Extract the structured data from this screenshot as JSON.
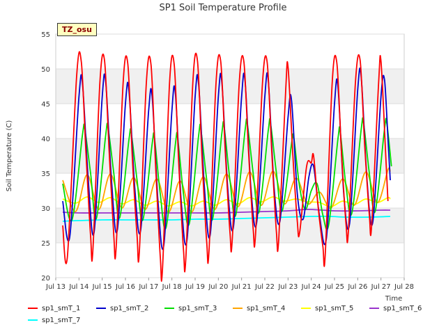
{
  "chart_data": {
    "type": "line",
    "title": "SP1 Soil Temperature Profile",
    "xlabel": "Time",
    "ylabel": "Soil Temperature (C)",
    "ylim": [
      20,
      55
    ],
    "xlim": [
      13,
      28
    ],
    "yticks": [
      20,
      25,
      30,
      35,
      40,
      45,
      50,
      55
    ],
    "xticks": [
      "Jul 13",
      "Jul 14",
      "Jul 15",
      "Jul 16",
      "Jul 17",
      "Jul 18",
      "Jul 19",
      "Jul 20",
      "Jul 21",
      "Jul 22",
      "Jul 23",
      "Jul 24",
      "Jul 25",
      "Jul 26",
      "Jul 27",
      "Jul 28"
    ],
    "grid": "horizontal bands",
    "legend_position": "bottom",
    "annotation": "TZ_osu",
    "series": [
      {
        "name": "sp1_smT_1",
        "color": "#ff0000",
        "values": [
          [
            13.3,
            27.5
          ],
          [
            13.5,
            23.0
          ],
          [
            13.9,
            49.0
          ],
          [
            14.1,
            51.0
          ],
          [
            14.3,
            38.0
          ],
          [
            14.5,
            26.0
          ],
          [
            14.6,
            24.0
          ],
          [
            14.9,
            48.0
          ],
          [
            15.1,
            51.2
          ],
          [
            15.3,
            38.0
          ],
          [
            15.5,
            26.0
          ],
          [
            15.6,
            24.4
          ],
          [
            15.9,
            48.0
          ],
          [
            16.1,
            50.8
          ],
          [
            16.3,
            37.0
          ],
          [
            16.5,
            26.0
          ],
          [
            16.6,
            23.8
          ],
          [
            16.9,
            48.0
          ],
          [
            17.1,
            50.6
          ],
          [
            17.3,
            36.0
          ],
          [
            17.5,
            23.0
          ],
          [
            17.6,
            21.5
          ],
          [
            17.9,
            48.0
          ],
          [
            18.1,
            50.6
          ],
          [
            18.3,
            36.0
          ],
          [
            18.5,
            24.0
          ],
          [
            18.6,
            22.8
          ],
          [
            18.9,
            48.0
          ],
          [
            19.1,
            51.2
          ],
          [
            19.3,
            37.0
          ],
          [
            19.5,
            25.0
          ],
          [
            19.6,
            24.0
          ],
          [
            19.9,
            48.0
          ],
          [
            20.1,
            51.1
          ],
          [
            20.3,
            38.0
          ],
          [
            20.5,
            26.5
          ],
          [
            20.6,
            25.5
          ],
          [
            20.9,
            48.0
          ],
          [
            21.1,
            51.0
          ],
          [
            21.3,
            38.0
          ],
          [
            21.5,
            27.0
          ],
          [
            21.6,
            26.2
          ],
          [
            21.9,
            48.0
          ],
          [
            22.1,
            51.0
          ],
          [
            22.3,
            38.0
          ],
          [
            22.5,
            26.5
          ],
          [
            22.6,
            25.5
          ],
          [
            22.9,
            47.0
          ],
          [
            23.0,
            50.3
          ],
          [
            23.2,
            38.0
          ],
          [
            23.4,
            28.0
          ],
          [
            23.5,
            26.5
          ],
          [
            23.8,
            36.0
          ],
          [
            24.0,
            36.5
          ],
          [
            24.1,
            37.5
          ],
          [
            24.3,
            30.0
          ],
          [
            24.5,
            24.5
          ],
          [
            24.6,
            23.3
          ],
          [
            24.9,
            48.0
          ],
          [
            25.1,
            50.9
          ],
          [
            25.3,
            38.0
          ],
          [
            25.5,
            27.5
          ],
          [
            25.6,
            26.8
          ],
          [
            25.9,
            48.0
          ],
          [
            26.1,
            51.3
          ],
          [
            26.3,
            39.0
          ],
          [
            26.5,
            29.0
          ],
          [
            26.6,
            27.5
          ],
          [
            26.9,
            48.0
          ],
          [
            27.0,
            51.1
          ],
          [
            27.2,
            38.0
          ],
          [
            27.3,
            31.0
          ]
        ]
      },
      {
        "name": "sp1_smT_2",
        "color": "#0000cc",
        "values": [
          [
            13.3,
            31.0
          ],
          [
            13.6,
            25.8
          ],
          [
            14.0,
            46.0
          ],
          [
            14.15,
            47.9
          ],
          [
            14.4,
            34.0
          ],
          [
            14.65,
            26.5
          ],
          [
            15.0,
            46.0
          ],
          [
            15.15,
            48.1
          ],
          [
            15.4,
            34.0
          ],
          [
            15.65,
            26.8
          ],
          [
            16.0,
            45.0
          ],
          [
            16.15,
            46.9
          ],
          [
            16.4,
            33.0
          ],
          [
            16.65,
            26.7
          ],
          [
            17.0,
            44.0
          ],
          [
            17.15,
            46.0
          ],
          [
            17.4,
            31.0
          ],
          [
            17.65,
            24.6
          ],
          [
            18.0,
            44.0
          ],
          [
            18.15,
            46.4
          ],
          [
            18.4,
            31.0
          ],
          [
            18.65,
            25.4
          ],
          [
            19.0,
            46.0
          ],
          [
            19.15,
            47.8
          ],
          [
            19.4,
            33.0
          ],
          [
            19.65,
            26.2
          ],
          [
            20.0,
            46.0
          ],
          [
            20.15,
            48.1
          ],
          [
            20.4,
            33.0
          ],
          [
            20.65,
            27.3
          ],
          [
            21.0,
            46.0
          ],
          [
            21.15,
            48.2
          ],
          [
            21.4,
            33.0
          ],
          [
            21.65,
            27.9
          ],
          [
            22.0,
            46.0
          ],
          [
            22.15,
            48.3
          ],
          [
            22.4,
            33.0
          ],
          [
            22.65,
            28.1
          ],
          [
            23.0,
            43.0
          ],
          [
            23.15,
            45.5
          ],
          [
            23.4,
            32.0
          ],
          [
            23.65,
            28.4
          ],
          [
            23.9,
            34.5
          ],
          [
            24.1,
            36.0
          ],
          [
            24.35,
            29.0
          ],
          [
            24.65,
            25.6
          ],
          [
            25.0,
            45.0
          ],
          [
            25.15,
            47.4
          ],
          [
            25.4,
            32.0
          ],
          [
            25.65,
            27.8
          ],
          [
            26.0,
            47.0
          ],
          [
            26.15,
            48.8
          ],
          [
            26.4,
            34.0
          ],
          [
            26.65,
            28.0
          ],
          [
            27.0,
            46.0
          ],
          [
            27.15,
            48.5
          ],
          [
            27.3,
            40.0
          ],
          [
            27.4,
            34.0
          ]
        ]
      },
      {
        "name": "sp1_smT_3",
        "color": "#00dd00",
        "values": [
          [
            13.3,
            33.5
          ],
          [
            13.7,
            28.3
          ],
          [
            14.15,
            40.5
          ],
          [
            14.25,
            41.3
          ],
          [
            14.5,
            35.0
          ],
          [
            14.75,
            28.5
          ],
          [
            15.15,
            40.5
          ],
          [
            15.25,
            41.5
          ],
          [
            15.5,
            35.0
          ],
          [
            15.75,
            28.6
          ],
          [
            16.15,
            39.8
          ],
          [
            16.25,
            40.7
          ],
          [
            16.5,
            34.0
          ],
          [
            16.75,
            28.3
          ],
          [
            17.15,
            39.2
          ],
          [
            17.25,
            40.0
          ],
          [
            17.5,
            32.0
          ],
          [
            17.75,
            27.2
          ],
          [
            18.15,
            39.2
          ],
          [
            18.25,
            40.0
          ],
          [
            18.5,
            32.0
          ],
          [
            18.75,
            27.8
          ],
          [
            19.15,
            40.4
          ],
          [
            19.25,
            41.2
          ],
          [
            19.5,
            34.0
          ],
          [
            19.75,
            28.4
          ],
          [
            20.15,
            40.7
          ],
          [
            20.25,
            41.6
          ],
          [
            20.5,
            34.0
          ],
          [
            20.75,
            29.0
          ],
          [
            21.15,
            41.2
          ],
          [
            21.25,
            42.0
          ],
          [
            21.5,
            35.0
          ],
          [
            21.75,
            29.4
          ],
          [
            22.15,
            41.2
          ],
          [
            22.25,
            42.1
          ],
          [
            22.5,
            35.0
          ],
          [
            22.75,
            29.6
          ],
          [
            23.15,
            39.2
          ],
          [
            23.25,
            40.0
          ],
          [
            23.5,
            33.0
          ],
          [
            23.75,
            29.8
          ],
          [
            24.0,
            32.5
          ],
          [
            24.25,
            33.5
          ],
          [
            24.5,
            29.0
          ],
          [
            24.75,
            27.6
          ],
          [
            25.15,
            40.0
          ],
          [
            25.25,
            40.8
          ],
          [
            25.5,
            33.0
          ],
          [
            25.75,
            29.3
          ],
          [
            26.15,
            41.3
          ],
          [
            26.25,
            42.2
          ],
          [
            26.5,
            35.0
          ],
          [
            26.75,
            29.5
          ],
          [
            27.15,
            41.3
          ],
          [
            27.25,
            42.2
          ],
          [
            27.45,
            36.0
          ]
        ]
      },
      {
        "name": "sp1_smT_4",
        "color": "#ffa500",
        "values": [
          [
            13.3,
            34.0
          ],
          [
            13.85,
            29.5
          ],
          [
            14.35,
            34.8
          ],
          [
            14.85,
            29.8
          ],
          [
            15.35,
            34.9
          ],
          [
            15.85,
            30.0
          ],
          [
            16.35,
            34.4
          ],
          [
            16.85,
            29.8
          ],
          [
            17.35,
            34.2
          ],
          [
            17.85,
            29.4
          ],
          [
            18.35,
            33.9
          ],
          [
            18.85,
            29.4
          ],
          [
            19.35,
            34.5
          ],
          [
            19.85,
            29.8
          ],
          [
            20.35,
            34.9
          ],
          [
            20.85,
            30.2
          ],
          [
            21.35,
            35.2
          ],
          [
            21.85,
            30.4
          ],
          [
            22.35,
            35.3
          ],
          [
            22.85,
            30.6
          ],
          [
            23.35,
            34.3
          ],
          [
            23.85,
            30.6
          ],
          [
            24.35,
            32.3
          ],
          [
            24.85,
            30.0
          ],
          [
            25.35,
            34.2
          ],
          [
            25.85,
            30.4
          ],
          [
            26.35,
            35.2
          ],
          [
            26.85,
            30.8
          ],
          [
            27.3,
            35.5
          ],
          [
            27.4,
            35.2
          ]
        ]
      },
      {
        "name": "sp1_smT_5",
        "color": "#ffff00",
        "values": [
          [
            13.3,
            31.3
          ],
          [
            13.85,
            30.7
          ],
          [
            14.35,
            31.6
          ],
          [
            14.85,
            30.8
          ],
          [
            15.35,
            31.5
          ],
          [
            15.85,
            30.6
          ],
          [
            16.35,
            31.2
          ],
          [
            16.85,
            30.4
          ],
          [
            17.35,
            31.0
          ],
          [
            17.85,
            30.3
          ],
          [
            18.35,
            30.9
          ],
          [
            18.85,
            30.3
          ],
          [
            19.35,
            31.0
          ],
          [
            19.85,
            30.4
          ],
          [
            20.35,
            31.2
          ],
          [
            20.85,
            30.6
          ],
          [
            21.35,
            31.5
          ],
          [
            21.85,
            30.9
          ],
          [
            22.35,
            31.6
          ],
          [
            22.85,
            31.0
          ],
          [
            23.35,
            31.3
          ],
          [
            23.85,
            30.9
          ],
          [
            24.35,
            30.8
          ],
          [
            24.85,
            30.2
          ],
          [
            25.35,
            31.0
          ],
          [
            25.85,
            30.5
          ],
          [
            26.35,
            31.3
          ],
          [
            26.85,
            30.8
          ],
          [
            27.3,
            31.5
          ],
          [
            27.4,
            31.3
          ]
        ]
      },
      {
        "name": "sp1_smT_6",
        "color": "#9933cc",
        "values": [
          [
            13.3,
            29.4
          ],
          [
            14.0,
            29.3
          ],
          [
            15.0,
            29.3
          ],
          [
            16.0,
            29.3
          ],
          [
            17.0,
            29.3
          ],
          [
            18.0,
            29.3
          ],
          [
            19.0,
            29.3
          ],
          [
            20.0,
            29.3
          ],
          [
            21.0,
            29.4
          ],
          [
            22.0,
            29.5
          ],
          [
            23.0,
            29.6
          ],
          [
            23.8,
            29.8
          ],
          [
            24.5,
            29.7
          ],
          [
            25.0,
            29.6
          ],
          [
            26.0,
            29.6
          ],
          [
            27.0,
            29.7
          ],
          [
            27.4,
            29.7
          ]
        ]
      },
      {
        "name": "sp1_smT_7",
        "color": "#00ffff",
        "values": [
          [
            13.3,
            28.1
          ],
          [
            14.0,
            28.2
          ],
          [
            15.0,
            28.3
          ],
          [
            16.0,
            28.3
          ],
          [
            17.0,
            28.3
          ],
          [
            18.0,
            28.3
          ],
          [
            19.0,
            28.4
          ],
          [
            20.0,
            28.4
          ],
          [
            21.0,
            28.5
          ],
          [
            22.0,
            28.6
          ],
          [
            23.0,
            28.7
          ],
          [
            24.0,
            28.8
          ],
          [
            24.8,
            28.8
          ],
          [
            25.5,
            28.7
          ],
          [
            26.5,
            28.7
          ],
          [
            27.4,
            28.8
          ]
        ]
      }
    ]
  }
}
